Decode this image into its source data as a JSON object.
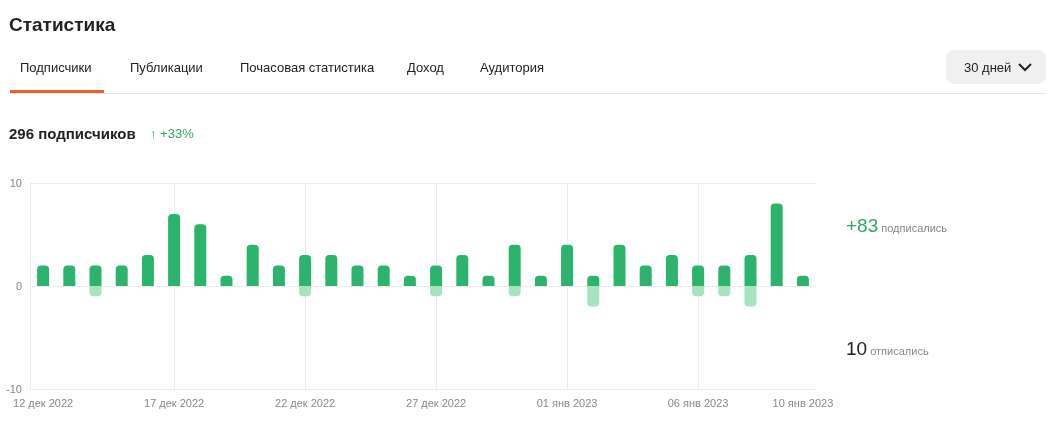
{
  "chart_data": {
    "type": "bar",
    "title": "Статистика",
    "categories": [
      "12 дек 2022",
      null,
      null,
      null,
      null,
      "17 дек 2022",
      null,
      null,
      null,
      null,
      "22 дек 2022",
      null,
      null,
      null,
      null,
      "27 дек 2022",
      null,
      null,
      null,
      null,
      "01 янв 2023",
      null,
      null,
      null,
      null,
      "06 янв 2023",
      null,
      null,
      null,
      "10 янв 2023"
    ],
    "series": [
      {
        "color": "#2db46c",
        "values": [
          2,
          2,
          2,
          2,
          3,
          7,
          6,
          1,
          4,
          2,
          3,
          3,
          2,
          2,
          1,
          2,
          3,
          1,
          4,
          1,
          4,
          1,
          4,
          2,
          3,
          2,
          2,
          3,
          8,
          1
        ]
      },
      {
        "color": "#a9e2c0",
        "values": [
          null,
          null,
          -1,
          null,
          null,
          null,
          null,
          null,
          null,
          null,
          -1,
          null,
          null,
          null,
          null,
          -1,
          null,
          null,
          -1,
          null,
          null,
          -2,
          null,
          null,
          null,
          -1,
          -1,
          -2,
          null,
          null
        ]
      }
    ],
    "ylim": [
      -10,
      10
    ],
    "yticks": [
      -10,
      0,
      10
    ],
    "grid": true,
    "annotations": [
      "Подписчики",
      "Публикации",
      "Почасовая статистика",
      "Доход",
      "Аудитория",
      "30 дней",
      "296 подписчиков",
      "↑ +33%",
      "+83 подписались",
      "10 отписались"
    ]
  }
}
